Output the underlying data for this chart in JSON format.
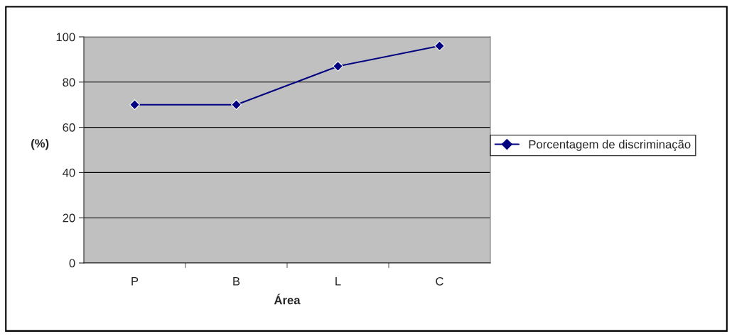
{
  "chart_data": {
    "type": "line",
    "xlabel": "Área",
    "ylabel": "(%)",
    "categories": [
      "P",
      "B",
      "L",
      "C"
    ],
    "series": [
      {
        "name": "Porcentagem de discriminação",
        "color": "#000080",
        "values": [
          70,
          70,
          87,
          96
        ]
      }
    ],
    "ylim": [
      0,
      100
    ],
    "yticks": [
      0,
      20,
      40,
      60,
      80,
      100
    ],
    "grid": "y",
    "legend": "right",
    "marker": "diamond",
    "line_style": "solid"
  }
}
